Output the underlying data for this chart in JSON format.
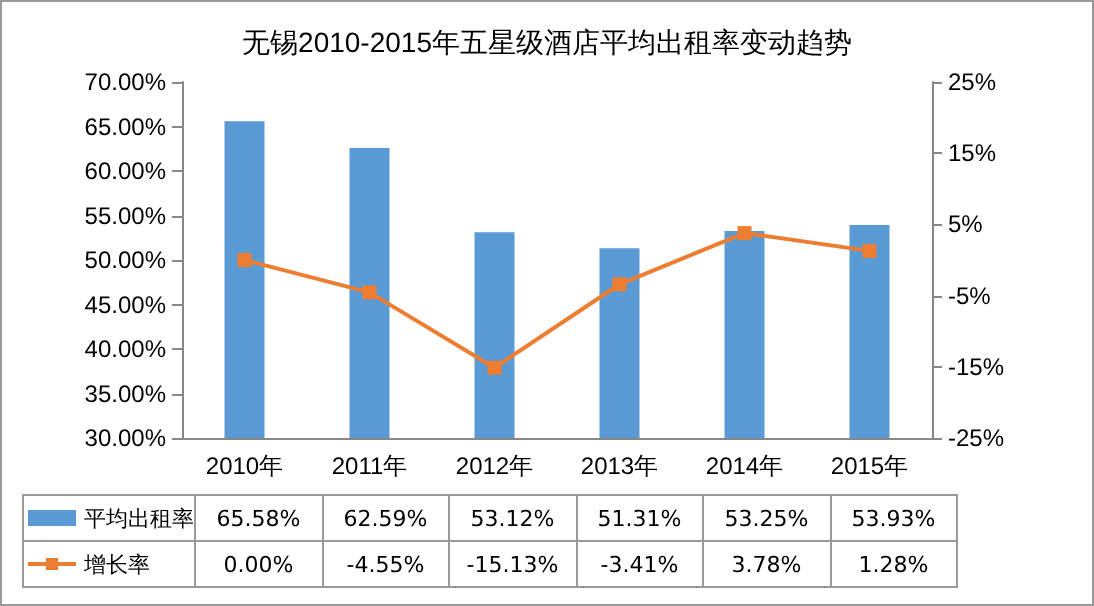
{
  "chart_data": {
    "type": "bar",
    "title": "无锡2010-2015年五星级酒店平均出租率变动趋势",
    "categories": [
      "2010年",
      "2011年",
      "2012年",
      "2013年",
      "2014年",
      "2015年"
    ],
    "series": [
      {
        "name": "平均出租率",
        "color": "#5b9bd5",
        "values": [
          65.58,
          62.59,
          53.12,
          51.31,
          53.25,
          53.93
        ],
        "value_labels": [
          "65.58%",
          "62.59%",
          "53.12%",
          "51.31%",
          "53.25%",
          "53.93%"
        ]
      },
      {
        "name": "增长率",
        "type": "line",
        "axis": "y2",
        "color": "#ed7d31",
        "marker": "square",
        "values": [
          0.0,
          -4.55,
          -15.13,
          -3.41,
          3.78,
          1.28
        ],
        "value_labels": [
          "0.00%",
          "-4.55%",
          "-15.13%",
          "-3.41%",
          "3.78%",
          "1.28%"
        ]
      }
    ],
    "ylim": [
      30,
      70
    ],
    "yticks": [
      {
        "value": 30,
        "label": "30.00%"
      },
      {
        "value": 35,
        "label": "35.00%"
      },
      {
        "value": 40,
        "label": "40.00%"
      },
      {
        "value": 45,
        "label": "45.00%"
      },
      {
        "value": 50,
        "label": "50.00%"
      },
      {
        "value": 55,
        "label": "55.00%"
      },
      {
        "value": 60,
        "label": "60.00%"
      },
      {
        "value": 65,
        "label": "65.00%"
      },
      {
        "value": 70,
        "label": "70.00%"
      }
    ],
    "y2lim": [
      -25,
      25
    ],
    "y2ticks": [
      {
        "value": -25,
        "label": "-25%"
      },
      {
        "value": -15,
        "label": "-15%"
      },
      {
        "value": -5,
        "label": "-5%"
      },
      {
        "value": 5,
        "label": "5%"
      },
      {
        "value": 15,
        "label": "15%"
      },
      {
        "value": 25,
        "label": "25%"
      }
    ],
    "legend": "bottom",
    "grid": false
  }
}
